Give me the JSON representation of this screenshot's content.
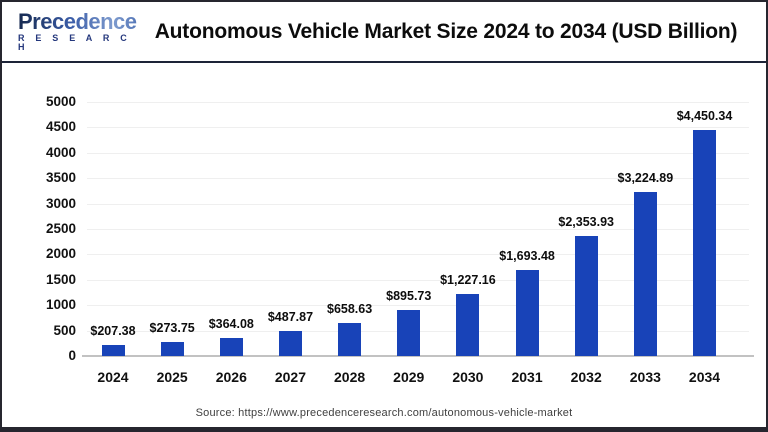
{
  "header": {
    "logo_text": "Precedence",
    "logo_subtext": "R E S E A R C H",
    "title": "Autonomous Vehicle Market Size 2024 to 2034 (USD Billion)"
  },
  "chart_data": {
    "type": "bar",
    "title": "Autonomous Vehicle Market Size 2024 to 2034 (USD Billion)",
    "categories": [
      "2024",
      "2025",
      "2026",
      "2027",
      "2028",
      "2029",
      "2030",
      "2031",
      "2032",
      "2033",
      "2034"
    ],
    "values": [
      207.38,
      273.75,
      364.08,
      487.87,
      658.63,
      895.73,
      1227.16,
      1693.48,
      2353.93,
      3224.89,
      4450.34
    ],
    "value_labels": [
      "$207.38",
      "$273.75",
      "$364.08",
      "$487.87",
      "$658.63",
      "$895.73",
      "$1,227.16",
      "$1,693.48",
      "$2,353.93",
      "$3,224.89",
      "$4,450.34"
    ],
    "xlabel": "",
    "ylabel": "",
    "ylim": [
      0,
      5000
    ],
    "yticks": [
      0,
      500,
      1000,
      1500,
      2000,
      2500,
      3000,
      3500,
      4000,
      4500,
      5000
    ],
    "grid": true,
    "legend_position": "none",
    "bar_color": "#1843b8"
  },
  "footer": {
    "source": "Source: https://www.precedenceresearch.com/autonomous-vehicle-market"
  },
  "colors": {
    "bar": "#1843b8",
    "gridline": "#efefef",
    "axis_line": "#c2c2c2",
    "header_separator": "#1d2438",
    "frame_border": "#26262f",
    "logo_navy": "#24377c"
  }
}
